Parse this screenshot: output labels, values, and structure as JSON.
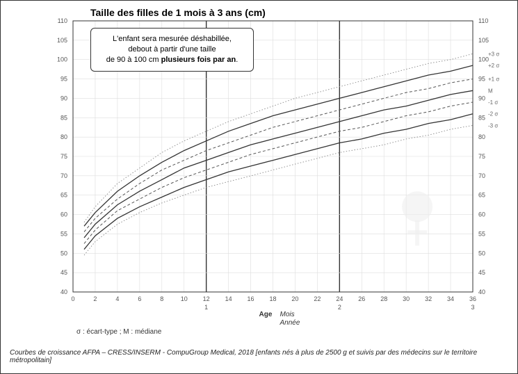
{
  "chart": {
    "type": "line",
    "title": "Taille des filles de 1 mois à 3 ans (cm)",
    "info_box_line1": "L'enfant sera mesurée déshabillée,",
    "info_box_line2": "debout à partir d'une taille",
    "info_box_line3_plain": "de 90 à 100 cm ",
    "info_box_line3_bold": "plusieurs fois par an",
    "info_box_line3_suffix": ".",
    "x_axis": {
      "label_top": "Age",
      "label_months": "Mois",
      "label_years": "Année",
      "min": 0,
      "max": 36,
      "tick_step": 2,
      "major_breaks": [
        12,
        24
      ],
      "year_labels": [
        "1",
        "2",
        "3"
      ]
    },
    "y_axis": {
      "min": 40,
      "max": 110,
      "tick_step": 5
    },
    "curves": [
      {
        "name": "+3σ",
        "label": "+3 σ",
        "style": "dotted",
        "x": [
          1,
          2,
          4,
          6,
          8,
          10,
          12,
          14,
          16,
          18,
          20,
          22,
          24,
          26,
          28,
          30,
          32,
          34,
          36
        ],
        "y": [
          58,
          62,
          68,
          72,
          76,
          79,
          81.5,
          84,
          86,
          88,
          90,
          91.5,
          93,
          94.5,
          96,
          97.5,
          99,
          100,
          101.5
        ]
      },
      {
        "name": "+2σ",
        "label": "+2 σ",
        "style": "solid",
        "x": [
          1,
          2,
          4,
          6,
          8,
          10,
          12,
          14,
          16,
          18,
          20,
          22,
          24,
          26,
          28,
          30,
          32,
          34,
          36
        ],
        "y": [
          57,
          60.5,
          66,
          70,
          73.5,
          76.5,
          79,
          81.5,
          83.5,
          85.5,
          87,
          88.5,
          90,
          91.5,
          93,
          94.5,
          96,
          97,
          98.5
        ]
      },
      {
        "name": "+1σ",
        "label": "+1 σ",
        "style": "dashed",
        "x": [
          1,
          2,
          4,
          6,
          8,
          10,
          12,
          14,
          16,
          18,
          20,
          22,
          24,
          26,
          28,
          30,
          32,
          34,
          36
        ],
        "y": [
          55.5,
          59,
          64,
          68,
          71.5,
          74,
          76.5,
          78.5,
          80.5,
          82.5,
          84,
          85.5,
          87,
          88.5,
          90,
          91.5,
          92.5,
          94,
          95
        ]
      },
      {
        "name": "M",
        "label": "M",
        "style": "solid",
        "x": [
          1,
          2,
          4,
          6,
          8,
          10,
          12,
          14,
          16,
          18,
          20,
          22,
          24,
          26,
          28,
          30,
          32,
          34,
          36
        ],
        "y": [
          54,
          57.5,
          62.5,
          66,
          69,
          72,
          74,
          76,
          78,
          79.5,
          81,
          82.5,
          84,
          85.5,
          87,
          88,
          89.5,
          91,
          92
        ]
      },
      {
        "name": "-1σ",
        "label": "-1 σ",
        "style": "dashed",
        "x": [
          1,
          2,
          4,
          6,
          8,
          10,
          12,
          14,
          16,
          18,
          20,
          22,
          24,
          26,
          28,
          30,
          32,
          34,
          36
        ],
        "y": [
          52.5,
          56,
          61,
          64,
          67,
          69.5,
          71.5,
          73.5,
          75.5,
          77,
          78.5,
          80,
          81.5,
          82.5,
          84,
          85.5,
          86.5,
          88,
          89
        ]
      },
      {
        "name": "-2σ",
        "label": "-2 σ",
        "style": "solid",
        "x": [
          1,
          2,
          4,
          6,
          8,
          10,
          12,
          14,
          16,
          18,
          20,
          22,
          24,
          26,
          28,
          30,
          32,
          34,
          36
        ],
        "y": [
          51,
          54.5,
          59,
          62,
          64.5,
          67,
          69,
          71,
          72.5,
          74,
          75.5,
          77,
          78.5,
          79.5,
          81,
          82,
          83.5,
          84.5,
          86
        ]
      },
      {
        "name": "-3σ",
        "label": "-3 σ",
        "style": "dotted",
        "x": [
          1,
          2,
          4,
          6,
          8,
          10,
          12,
          14,
          16,
          18,
          20,
          22,
          24,
          26,
          28,
          30,
          32,
          34,
          36
        ],
        "y": [
          49.5,
          53,
          57.5,
          60.5,
          63,
          65,
          67,
          68.5,
          70,
          71.5,
          73,
          74.5,
          76,
          77,
          78,
          79.5,
          80.5,
          82,
          83
        ]
      }
    ],
    "background_color": "#ffffff",
    "grid_color": "#dddddd",
    "major_grid_color": "#333333",
    "curve_color_solid": "#333333",
    "curve_color_dashed": "#555555",
    "curve_color_dotted": "#888888"
  },
  "legend_text": "σ : écart-type ; M : médiane",
  "footer_text": "Courbes de croissance  AFPA – CRESS/INSERM - CompuGroup Medical, 2018 [enfants nés à plus de 2500 g et suivis par des médecins sur le territoire métropolitain]"
}
